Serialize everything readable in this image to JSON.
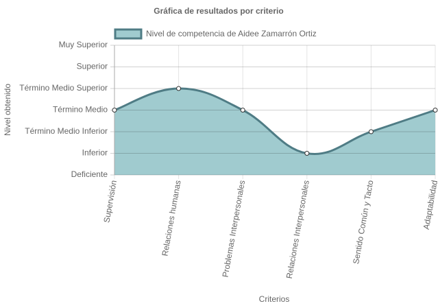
{
  "chart_data": {
    "type": "area",
    "title": "Gráfica de resultados por criterio",
    "x_label": "Criterios",
    "y_label": "Nivel obtenido",
    "categories": [
      "Supervisión",
      "Relaciones humanas",
      "Problemas Interpersonales",
      "Relaciones Interpersonales",
      "Sentido Común y Tacto",
      "Adaptabilidad"
    ],
    "series": [
      {
        "name": "Nivel de competencia de Aidee Zamarrón Ortiz",
        "color": "#4f7c85",
        "fill": "#a0cbcf",
        "values": [
          3,
          4,
          3,
          1,
          2,
          3
        ]
      }
    ],
    "ylim": [
      0,
      6
    ],
    "yticks": [
      {
        "value": 0,
        "label": "Deficiente"
      },
      {
        "value": 1,
        "label": "Inferior"
      },
      {
        "value": 2,
        "label": "Término Medio Inferior"
      },
      {
        "value": 3,
        "label": "Término Medio"
      },
      {
        "value": 4,
        "label": "Término Medio Superior"
      },
      {
        "value": 5,
        "label": "Superior"
      },
      {
        "value": 6,
        "label": "Muy Superior"
      }
    ],
    "grid": true,
    "legend": "top"
  }
}
